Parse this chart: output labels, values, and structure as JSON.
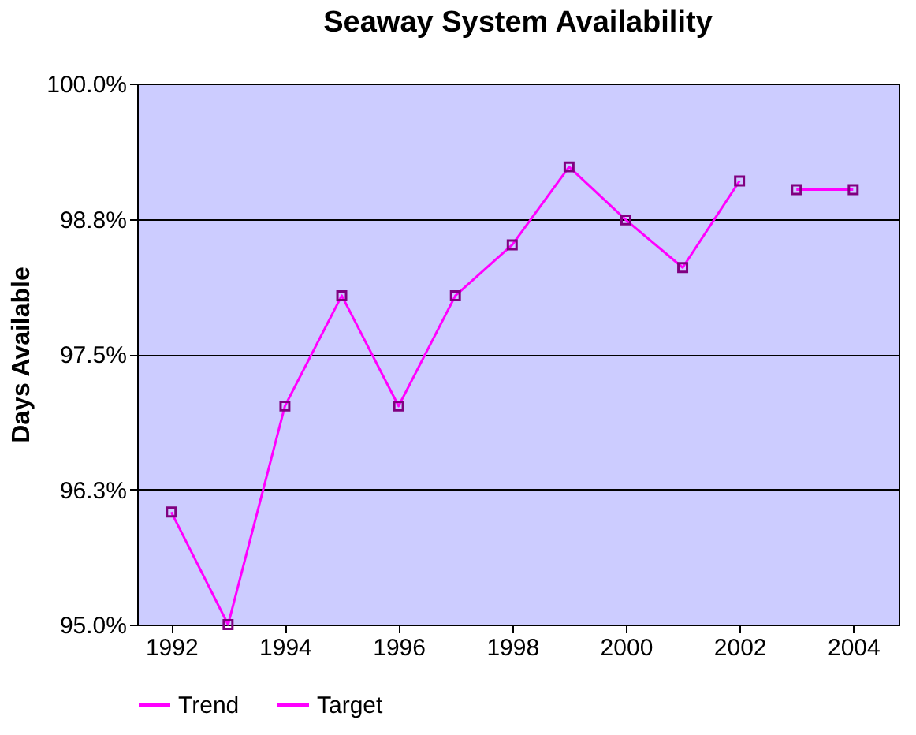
{
  "chart_data": {
    "type": "line",
    "title": "Seaway System Availability",
    "ylabel": "Days Available",
    "xlim": [
      1991.4,
      2004.8
    ],
    "xticks": [
      1992,
      1994,
      1996,
      1998,
      2000,
      2002,
      2004
    ],
    "ylim": [
      95,
      100
    ],
    "yticks": [
      {
        "value": 95,
        "label": "95.0%"
      },
      {
        "value": 96.25,
        "label": "96.3%"
      },
      {
        "value": 97.5,
        "label": "97.5%"
      },
      {
        "value": 98.75,
        "label": "98.8%"
      },
      {
        "value": 100,
        "label": "100.0%"
      }
    ],
    "grid": "y",
    "legend": "bottom",
    "marker": "square",
    "line_style": "solid",
    "series": [
      {
        "name": "Trend",
        "color": "#ff00ff",
        "x": [
          1992,
          1993,
          1994,
          1995,
          1996,
          1997,
          1998,
          1999,
          2000,
          2001,
          2002
        ],
        "values": [
          96.04,
          95.0,
          97.02,
          98.04,
          97.02,
          98.04,
          98.51,
          99.23,
          98.74,
          98.3,
          99.1
        ]
      },
      {
        "name": "Target",
        "color": "#ff00ff",
        "x": [
          2003,
          2004
        ],
        "values": [
          99.02,
          99.02
        ]
      }
    ]
  }
}
